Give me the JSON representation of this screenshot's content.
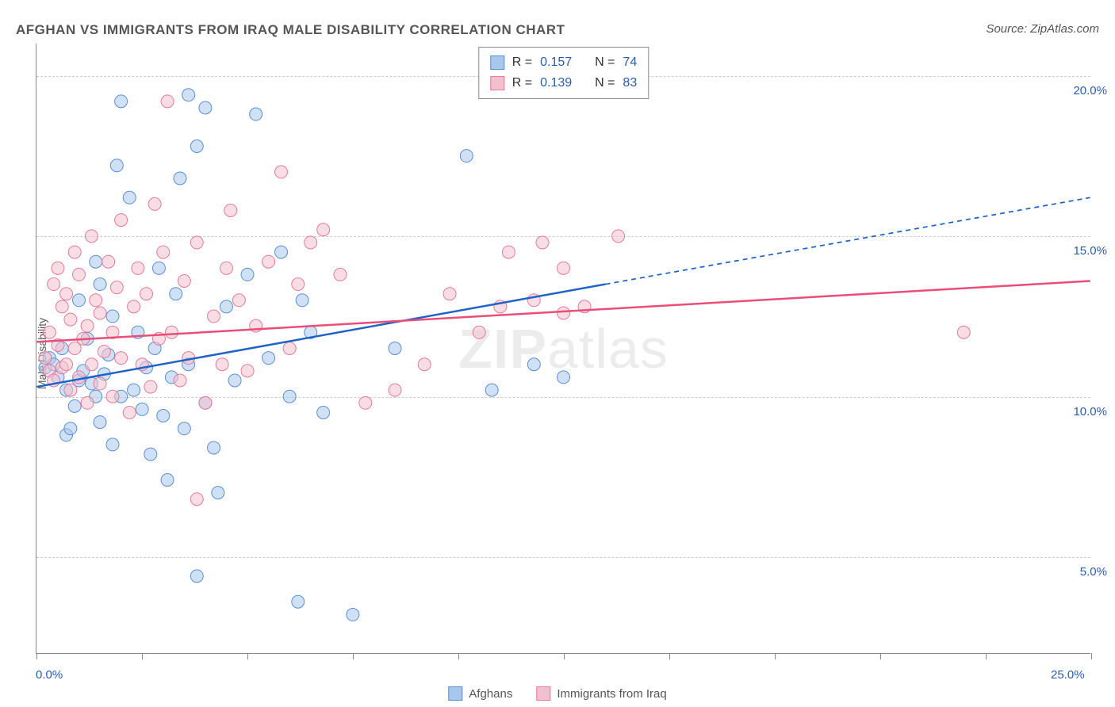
{
  "title": "AFGHAN VS IMMIGRANTS FROM IRAQ MALE DISABILITY CORRELATION CHART",
  "source": "Source: ZipAtlas.com",
  "watermark": {
    "bold": "ZIP",
    "light": "atlas"
  },
  "chart": {
    "type": "scatter",
    "ylabel": "Male Disability",
    "xlim": [
      0,
      25
    ],
    "ylim": [
      2,
      21
    ],
    "x_ticks": [
      0,
      2.5,
      5,
      7.5,
      10,
      12.5,
      15,
      17.5,
      20,
      22.5,
      25
    ],
    "x_tick_labels": {
      "0": "0.0%",
      "25": "25.0%"
    },
    "y_gridlines": [
      5,
      10,
      15,
      20
    ],
    "y_tick_labels": [
      "5.0%",
      "10.0%",
      "15.0%",
      "20.0%"
    ],
    "background_color": "#ffffff",
    "grid_color": "#cccccc",
    "axis_color": "#888888",
    "label_color": "#2a5db0",
    "marker_radius": 8,
    "marker_opacity": 0.55,
    "series": [
      {
        "name": "Afghans",
        "color_fill": "#a9c6ec",
        "color_stroke": "#5a8fd6",
        "r": 0.157,
        "n": 74,
        "trend": {
          "x1": 0,
          "y1": 10.3,
          "x2_solid": 13.5,
          "y2_solid": 13.5,
          "x2": 25,
          "y2": 16.2,
          "color": "#1f63c9",
          "width": 2.5,
          "dash_after_solid": true
        },
        "points": [
          [
            0.2,
            10.9
          ],
          [
            0.3,
            11.2
          ],
          [
            0.4,
            11.0
          ],
          [
            0.5,
            10.6
          ],
          [
            0.6,
            11.5
          ],
          [
            0.7,
            8.8
          ],
          [
            0.7,
            10.2
          ],
          [
            0.8,
            9.0
          ],
          [
            0.9,
            9.7
          ],
          [
            1.0,
            10.5
          ],
          [
            1.0,
            13.0
          ],
          [
            1.1,
            10.8
          ],
          [
            1.2,
            11.8
          ],
          [
            1.3,
            10.4
          ],
          [
            1.4,
            14.2
          ],
          [
            1.4,
            10.0
          ],
          [
            1.5,
            9.2
          ],
          [
            1.5,
            13.5
          ],
          [
            1.6,
            10.7
          ],
          [
            1.7,
            11.3
          ],
          [
            1.8,
            8.5
          ],
          [
            1.8,
            12.5
          ],
          [
            1.9,
            17.2
          ],
          [
            2.0,
            10.0
          ],
          [
            2.0,
            19.2
          ],
          [
            2.2,
            16.2
          ],
          [
            2.3,
            10.2
          ],
          [
            2.4,
            12.0
          ],
          [
            2.5,
            9.6
          ],
          [
            2.6,
            10.9
          ],
          [
            2.7,
            8.2
          ],
          [
            2.8,
            11.5
          ],
          [
            2.9,
            14.0
          ],
          [
            3.0,
            9.4
          ],
          [
            3.1,
            7.4
          ],
          [
            3.2,
            10.6
          ],
          [
            3.3,
            13.2
          ],
          [
            3.4,
            16.8
          ],
          [
            3.5,
            9.0
          ],
          [
            3.6,
            11.0
          ],
          [
            3.6,
            19.4
          ],
          [
            3.8,
            17.8
          ],
          [
            3.8,
            4.4
          ],
          [
            4.0,
            19.0
          ],
          [
            4.0,
            9.8
          ],
          [
            4.2,
            8.4
          ],
          [
            4.3,
            7.0
          ],
          [
            4.5,
            12.8
          ],
          [
            4.7,
            10.5
          ],
          [
            5.0,
            13.8
          ],
          [
            5.2,
            18.8
          ],
          [
            5.5,
            11.2
          ],
          [
            5.8,
            14.5
          ],
          [
            6.0,
            10.0
          ],
          [
            6.2,
            3.6
          ],
          [
            6.3,
            13.0
          ],
          [
            6.5,
            12.0
          ],
          [
            6.8,
            9.5
          ],
          [
            7.5,
            3.2
          ],
          [
            8.5,
            11.5
          ],
          [
            10.2,
            17.5
          ],
          [
            10.8,
            10.2
          ],
          [
            11.8,
            11.0
          ],
          [
            12.5,
            10.6
          ]
        ]
      },
      {
        "name": "Immigrants from Iraq",
        "color_fill": "#f3c1cd",
        "color_stroke": "#e77a9a",
        "r": 0.139,
        "n": 83,
        "trend": {
          "x1": 0,
          "y1": 11.7,
          "x2_solid": 25,
          "y2_solid": 13.6,
          "x2": 25,
          "y2": 13.6,
          "color": "#e94d78",
          "width": 2.5,
          "dash_after_solid": false
        },
        "points": [
          [
            0.2,
            11.2
          ],
          [
            0.3,
            10.8
          ],
          [
            0.3,
            12.0
          ],
          [
            0.4,
            13.5
          ],
          [
            0.4,
            10.5
          ],
          [
            0.5,
            11.6
          ],
          [
            0.5,
            14.0
          ],
          [
            0.6,
            10.9
          ],
          [
            0.6,
            12.8
          ],
          [
            0.7,
            11.0
          ],
          [
            0.7,
            13.2
          ],
          [
            0.8,
            10.2
          ],
          [
            0.8,
            12.4
          ],
          [
            0.9,
            11.5
          ],
          [
            0.9,
            14.5
          ],
          [
            1.0,
            10.6
          ],
          [
            1.0,
            13.8
          ],
          [
            1.1,
            11.8
          ],
          [
            1.2,
            9.8
          ],
          [
            1.2,
            12.2
          ],
          [
            1.3,
            11.0
          ],
          [
            1.3,
            15.0
          ],
          [
            1.4,
            13.0
          ],
          [
            1.5,
            10.4
          ],
          [
            1.5,
            12.6
          ],
          [
            1.6,
            11.4
          ],
          [
            1.7,
            14.2
          ],
          [
            1.8,
            10.0
          ],
          [
            1.8,
            12.0
          ],
          [
            1.9,
            13.4
          ],
          [
            2.0,
            11.2
          ],
          [
            2.0,
            15.5
          ],
          [
            2.2,
            9.5
          ],
          [
            2.3,
            12.8
          ],
          [
            2.4,
            14.0
          ],
          [
            2.5,
            11.0
          ],
          [
            2.6,
            13.2
          ],
          [
            2.7,
            10.3
          ],
          [
            2.8,
            16.0
          ],
          [
            2.9,
            11.8
          ],
          [
            3.0,
            14.5
          ],
          [
            3.1,
            19.2
          ],
          [
            3.2,
            12.0
          ],
          [
            3.4,
            10.5
          ],
          [
            3.5,
            13.6
          ],
          [
            3.6,
            11.2
          ],
          [
            3.8,
            14.8
          ],
          [
            3.8,
            6.8
          ],
          [
            4.0,
            9.8
          ],
          [
            4.2,
            12.5
          ],
          [
            4.4,
            11.0
          ],
          [
            4.5,
            14.0
          ],
          [
            4.6,
            15.8
          ],
          [
            4.8,
            13.0
          ],
          [
            5.0,
            10.8
          ],
          [
            5.2,
            12.2
          ],
          [
            5.5,
            14.2
          ],
          [
            5.8,
            17.0
          ],
          [
            6.0,
            11.5
          ],
          [
            6.2,
            13.5
          ],
          [
            6.5,
            14.8
          ],
          [
            6.8,
            15.2
          ],
          [
            7.2,
            13.8
          ],
          [
            7.8,
            9.8
          ],
          [
            8.5,
            10.2
          ],
          [
            9.2,
            11.0
          ],
          [
            9.8,
            13.2
          ],
          [
            10.5,
            12.0
          ],
          [
            11.0,
            12.8
          ],
          [
            11.2,
            14.5
          ],
          [
            11.8,
            13.0
          ],
          [
            12.0,
            14.8
          ],
          [
            12.5,
            14.0
          ],
          [
            12.5,
            12.6
          ],
          [
            13.0,
            12.8
          ],
          [
            13.8,
            15.0
          ],
          [
            22.0,
            12.0
          ]
        ]
      }
    ],
    "legend_top": {
      "r_label": "R =",
      "n_label": "N ="
    },
    "legend_bottom_labels": [
      "Afghans",
      "Immigrants from Iraq"
    ]
  }
}
